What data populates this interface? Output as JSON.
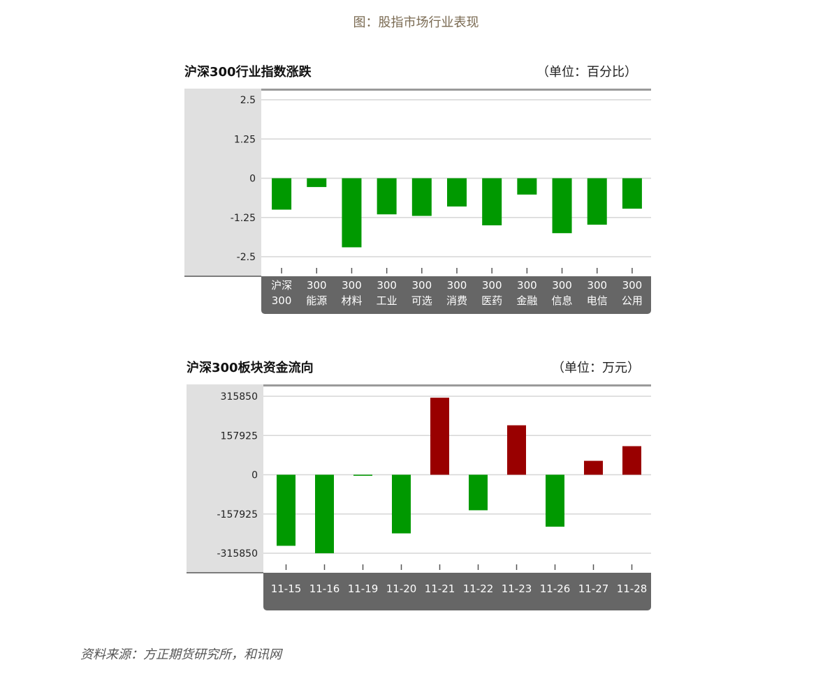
{
  "page_title": "图：股指市场行业表现",
  "source": "资料来源：方正期货研究所，和讯网",
  "chart_data": [
    {
      "type": "bar",
      "title": "沪深300行业指数涨跌",
      "unit": "（单位：百分比）",
      "yticks": [
        "2.5",
        "1.25",
        "0",
        "-1.25",
        "-2.5"
      ],
      "ylim": [
        -2.5,
        2.5
      ],
      "grid": true,
      "categories": [
        [
          "沪深",
          "300"
        ],
        [
          "300",
          "能源"
        ],
        [
          "300",
          "材料"
        ],
        [
          "300",
          "工业"
        ],
        [
          "300",
          "可选"
        ],
        [
          "300",
          "消费"
        ],
        [
          "300",
          "医药"
        ],
        [
          "300",
          "金融"
        ],
        [
          "300",
          "信息"
        ],
        [
          "300",
          "电信"
        ],
        [
          "300",
          "公用"
        ]
      ],
      "values": [
        -1.0,
        -0.28,
        -2.2,
        -1.15,
        -1.2,
        -0.9,
        -1.5,
        -0.52,
        -1.75,
        -1.48,
        -0.97
      ],
      "colors": {
        "negative": "#009900",
        "positive": "#990000"
      }
    },
    {
      "type": "bar",
      "title": "沪深300板块资金流向",
      "unit": "（单位：万元）",
      "yticks": [
        "315850",
        "157925",
        "0",
        "-157925",
        "-315850"
      ],
      "ylim": [
        -315850,
        315850
      ],
      "grid": true,
      "categories": [
        "11-15",
        "11-16",
        "11-19",
        "11-20",
        "11-21",
        "11-22",
        "11-23",
        "11-26",
        "11-27",
        "11-28"
      ],
      "values": [
        -286000,
        -316000,
        -2000,
        -236000,
        310000,
        -143000,
        199000,
        -209000,
        56000,
        115000
      ],
      "colors": {
        "negative": "#009900",
        "positive": "#990000"
      }
    }
  ]
}
